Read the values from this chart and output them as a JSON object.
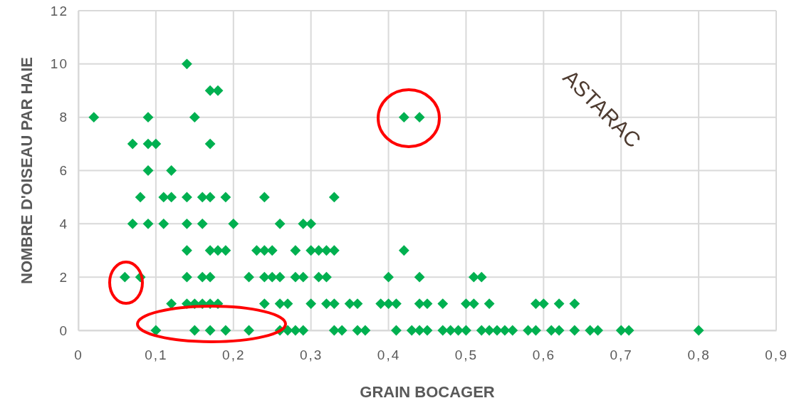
{
  "chart_data": {
    "type": "scatter",
    "xlabel": "GRAIN BOCAGER",
    "ylabel": "NOMBRE D'OISEAU PAR HAIE",
    "annotations": [
      "ASTARAC"
    ],
    "marker": "diamond",
    "grid": true,
    "xlim": [
      0,
      0.9
    ],
    "xticks": [
      0,
      {
        "value": 0.1,
        "label": "0,1"
      },
      {
        "value": 0.2,
        "label": "0,2"
      },
      {
        "value": 0.3,
        "label": "0,3"
      },
      {
        "value": 0.4,
        "label": "0,4"
      },
      {
        "value": 0.5,
        "label": "0,5"
      },
      {
        "value": 0.6,
        "label": "0,6"
      },
      {
        "value": 0.7,
        "label": "0,7"
      },
      {
        "value": 0.8,
        "label": "0,8"
      },
      {
        "value": 0.9,
        "label": "0,9"
      }
    ],
    "ylim": [
      0,
      12
    ],
    "yticks": [
      0,
      2,
      4,
      6,
      8,
      10,
      12
    ],
    "series": [
      {
        "color": "#00b050",
        "x": [
          0.14,
          0.17,
          0.18,
          0.02,
          0.09,
          0.15,
          0.42,
          0.44,
          0.07,
          0.09,
          0.1,
          0.17,
          0.09,
          0.12,
          0.08,
          0.11,
          0.12,
          0.14,
          0.16,
          0.17,
          0.19,
          0.24,
          0.33,
          0.07,
          0.09,
          0.11,
          0.14,
          0.16,
          0.2,
          0.26,
          0.29,
          0.3,
          0.14,
          0.17,
          0.18,
          0.19,
          0.23,
          0.24,
          0.25,
          0.28,
          0.3,
          0.31,
          0.32,
          0.33,
          0.42,
          0.06,
          0.08,
          0.14,
          0.16,
          0.17,
          0.22,
          0.24,
          0.25,
          0.26,
          0.28,
          0.29,
          0.31,
          0.32,
          0.4,
          0.44,
          0.51,
          0.52,
          0.12,
          0.14,
          0.15,
          0.16,
          0.17,
          0.18,
          0.24,
          0.26,
          0.27,
          0.3,
          0.32,
          0.33,
          0.35,
          0.36,
          0.39,
          0.4,
          0.41,
          0.44,
          0.45,
          0.47,
          0.5,
          0.51,
          0.53,
          0.59,
          0.6,
          0.62,
          0.64,
          0.1,
          0.15,
          0.17,
          0.19,
          0.22,
          0.26,
          0.27,
          0.28,
          0.29,
          0.33,
          0.34,
          0.36,
          0.37,
          0.41,
          0.43,
          0.44,
          0.45,
          0.47,
          0.48,
          0.49,
          0.5,
          0.52,
          0.53,
          0.54,
          0.55,
          0.56,
          0.58,
          0.59,
          0.61,
          0.62,
          0.64,
          0.66,
          0.67,
          0.7,
          0.71,
          0.8
        ],
        "values": [
          10,
          9,
          9,
          8,
          8,
          8,
          8,
          8,
          7,
          7,
          7,
          7,
          6,
          6,
          5,
          5,
          5,
          5,
          5,
          5,
          5,
          5,
          5,
          4,
          4,
          4,
          4,
          4,
          4,
          4,
          4,
          4,
          3,
          3,
          3,
          3,
          3,
          3,
          3,
          3,
          3,
          3,
          3,
          3,
          3,
          2,
          2,
          2,
          2,
          2,
          2,
          2,
          2,
          2,
          2,
          2,
          2,
          2,
          2,
          2,
          2,
          2,
          1,
          1,
          1,
          1,
          1,
          1,
          1,
          1,
          1,
          1,
          1,
          1,
          1,
          1,
          1,
          1,
          1,
          1,
          1,
          1,
          1,
          1,
          1,
          1,
          1,
          1,
          1,
          0,
          0,
          0,
          0,
          0,
          0,
          0,
          0,
          0,
          0,
          0,
          0,
          0,
          0,
          0,
          0,
          0,
          0,
          0,
          0,
          0,
          0,
          0,
          0,
          0,
          0,
          0,
          0,
          0,
          0,
          0,
          0,
          0,
          0,
          0,
          0
        ]
      }
    ]
  }
}
